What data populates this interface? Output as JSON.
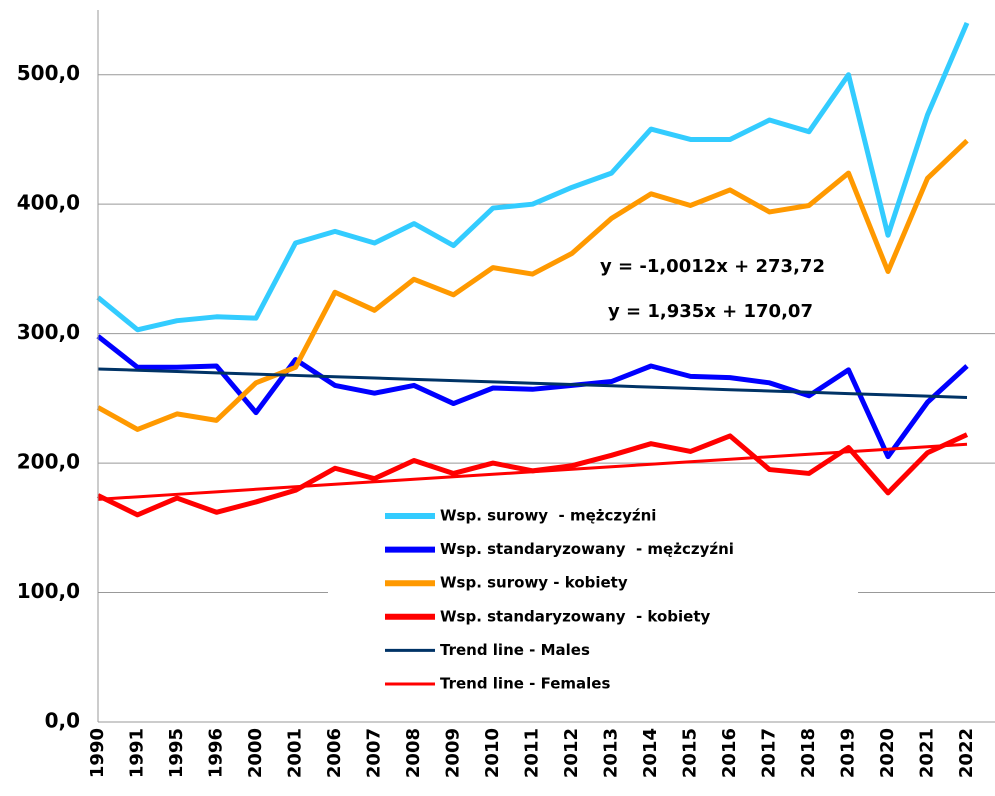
{
  "chart_data": {
    "type": "line",
    "annotations": [
      "y = -1,0012x + 273,72",
      "y = 1,935x + 170,07"
    ],
    "categories": [
      "1990",
      "1991",
      "1995",
      "1996",
      "2000",
      "2001",
      "2006",
      "2007",
      "2008",
      "2009",
      "2010",
      "2011",
      "2012",
      "2013",
      "2014",
      "2015",
      "2016",
      "2017",
      "2018",
      "2019",
      "2020",
      "2021",
      "2022"
    ],
    "series": [
      {
        "name": "Wsp. surowy  - mężczyźni",
        "color": "#33ccff",
        "values": [
          328,
          303,
          310,
          313,
          312,
          370,
          379,
          370,
          385,
          368,
          397,
          400,
          413,
          424,
          458,
          450,
          450,
          465,
          456,
          500,
          376,
          469,
          540
        ]
      },
      {
        "name": "Wsp. standaryzowany  - mężczyźni",
        "color": "#0000ff",
        "values": [
          298,
          274,
          274,
          275,
          239,
          280,
          260,
          254,
          260,
          246,
          258,
          257,
          260,
          263,
          275,
          267,
          266,
          262,
          252,
          272,
          205,
          247,
          275
        ]
      },
      {
        "name": "Wsp. surowy - kobiety",
        "color": "#ff9900",
        "values": [
          243,
          226,
          238,
          233,
          262,
          274,
          332,
          318,
          342,
          330,
          351,
          346,
          362,
          389,
          408,
          399,
          411,
          394,
          399,
          424,
          348,
          420,
          449
        ]
      },
      {
        "name": "Wsp. standaryzowany  - kobiety",
        "color": "#ff0000",
        "values": [
          175,
          160,
          173,
          162,
          170,
          179,
          196,
          188,
          202,
          192,
          200,
          194,
          198,
          206,
          215,
          209,
          221,
          195,
          192,
          212,
          177,
          208,
          222
        ]
      },
      {
        "name": "Trend line - Males",
        "color": "#003366",
        "values": [
          272.72,
          271.72,
          270.72,
          269.72,
          268.71,
          267.71,
          266.71,
          265.71,
          264.71,
          263.71,
          262.71,
          261.71,
          260.7,
          259.7,
          258.7,
          257.7,
          256.7,
          255.7,
          254.7,
          253.7,
          252.69,
          251.69,
          250.69
        ]
      },
      {
        "name": "Trend line - Females",
        "color": "#ff0000",
        "values": [
          172.01,
          173.94,
          175.88,
          177.81,
          179.75,
          181.68,
          183.62,
          185.55,
          187.49,
          189.42,
          191.36,
          193.29,
          195.23,
          197.16,
          199.1,
          201.03,
          202.97,
          204.9,
          206.84,
          208.77,
          210.71,
          212.64,
          214.58
        ]
      }
    ],
    "ylim": [
      0,
      550
    ],
    "yticks": [
      {
        "value": 0,
        "label": "0,0"
      },
      {
        "value": 100,
        "label": "100,0"
      },
      {
        "value": 200,
        "label": "200,0"
      },
      {
        "value": 300,
        "label": "300,0"
      },
      {
        "value": 400,
        "label": "400,0"
      },
      {
        "value": 500,
        "label": "500,0"
      }
    ],
    "grid": true
  }
}
